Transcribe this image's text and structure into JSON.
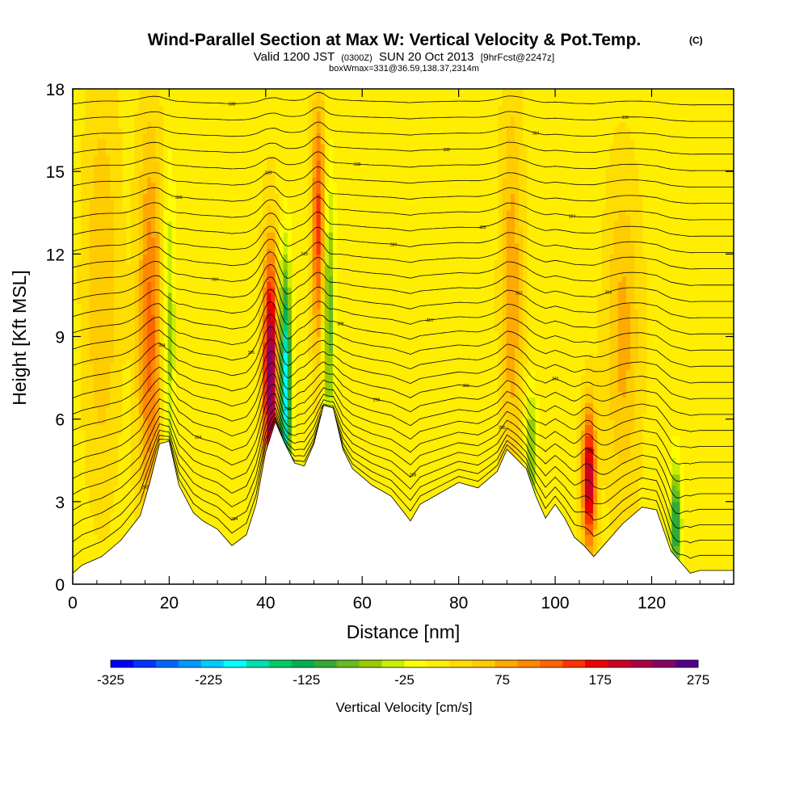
{
  "chart_data": {
    "type": "heatmap",
    "title": "Wind-Parallel Section at Max W: Vertical Velocity & Pot.Temp.",
    "title_mark": "(C)",
    "subtitle_parts": [
      "Valid 1200 JST",
      "(0300Z)",
      "SUN 20 Oct 2013",
      "[9hrFcst@2247z]"
    ],
    "subtitle2": "boxWmax=331@36.59,138.37,2314m",
    "xlabel": "Distance [nm]",
    "ylabel": "Height [Kft MSL]",
    "xlim": [
      0,
      137
    ],
    "ylim": [
      0,
      18
    ],
    "x_ticks": [
      0,
      20,
      40,
      60,
      80,
      100,
      120
    ],
    "x_tick_labels": [
      "0",
      "20",
      "40",
      "60",
      "80",
      "100",
      "120"
    ],
    "y_ticks": [
      0,
      3,
      6,
      9,
      12,
      15,
      18
    ],
    "y_tick_labels": [
      "0",
      "3",
      "6",
      "9",
      "12",
      "15",
      "18"
    ],
    "colorbar": {
      "title": "Vertical Velocity [cm/s]",
      "min": -325,
      "max": 275,
      "step": 25,
      "tick_values": [
        -325,
        -225,
        -125,
        -25,
        75,
        175,
        275
      ],
      "tick_labels": [
        "-325",
        "-225",
        "-125",
        "-25",
        "75",
        "175",
        "275"
      ],
      "colors": [
        "#0000ff",
        "#0033ff",
        "#0066ff",
        "#0099ff",
        "#00ccff",
        "#00ffff",
        "#00e0b0",
        "#00cc66",
        "#00b050",
        "#33aa33",
        "#66bb22",
        "#99cc00",
        "#ccee00",
        "#ffff00",
        "#ffee00",
        "#ffdd00",
        "#ffcc00",
        "#ffaa00",
        "#ff8800",
        "#ff6600",
        "#ff3300",
        "#ee0000",
        "#cc0022",
        "#aa0044",
        "#880066",
        "#550088"
      ]
    },
    "background_w": 40,
    "terrain_top": [
      [
        0,
        0.4
      ],
      [
        2,
        0.7
      ],
      [
        6,
        1.0
      ],
      [
        10,
        1.6
      ],
      [
        14,
        2.5
      ],
      [
        16,
        3.7
      ],
      [
        18,
        5.1
      ],
      [
        20,
        5.2
      ],
      [
        22,
        3.6
      ],
      [
        25,
        2.6
      ],
      [
        27,
        2.3
      ],
      [
        30,
        2.0
      ],
      [
        33,
        1.4
      ],
      [
        36,
        1.8
      ],
      [
        38,
        2.9
      ],
      [
        40,
        4.8
      ],
      [
        42,
        5.9
      ],
      [
        44,
        5.1
      ],
      [
        46,
        4.4
      ],
      [
        48,
        4.3
      ],
      [
        50,
        5.1
      ],
      [
        52,
        6.5
      ],
      [
        54,
        6.4
      ],
      [
        56,
        4.9
      ],
      [
        58,
        4.2
      ],
      [
        62,
        3.6
      ],
      [
        66,
        3.2
      ],
      [
        70,
        2.3
      ],
      [
        72,
        2.9
      ],
      [
        76,
        3.3
      ],
      [
        80,
        3.7
      ],
      [
        84,
        3.5
      ],
      [
        88,
        4.1
      ],
      [
        90,
        4.9
      ],
      [
        94,
        4.2
      ],
      [
        96,
        3.2
      ],
      [
        98,
        2.4
      ],
      [
        100,
        2.9
      ],
      [
        102,
        2.4
      ],
      [
        104,
        1.7
      ],
      [
        106,
        1.4
      ],
      [
        108,
        1.0
      ],
      [
        110,
        1.4
      ],
      [
        114,
        2.2
      ],
      [
        118,
        2.8
      ],
      [
        121,
        2.7
      ],
      [
        124,
        1.2
      ],
      [
        126,
        0.8
      ],
      [
        128,
        0.4
      ],
      [
        130,
        0.5
      ],
      [
        137,
        0.5
      ]
    ],
    "w_features": [
      {
        "x": 41,
        "z": 7.5,
        "w": 260,
        "sx": 1.1,
        "sz": 3.2
      },
      {
        "x": 44,
        "z": 7.2,
        "w": -240,
        "sx": 0.9,
        "sz": 3.0
      },
      {
        "x": 16,
        "z": 9.0,
        "w": 120,
        "sx": 1.8,
        "sz": 5.0
      },
      {
        "x": 20,
        "z": 9.0,
        "w": -80,
        "sx": 0.9,
        "sz": 4.0
      },
      {
        "x": 51,
        "z": 13.0,
        "w": 150,
        "sx": 1.0,
        "sz": 3.2
      },
      {
        "x": 53,
        "z": 10.0,
        "w": -120,
        "sx": 0.9,
        "sz": 3.4
      },
      {
        "x": 107,
        "z": 3.8,
        "w": 220,
        "sx": 1.0,
        "sz": 1.8
      },
      {
        "x": 95,
        "z": 4.8,
        "w": -100,
        "sx": 0.9,
        "sz": 1.6
      },
      {
        "x": 125,
        "z": 2.2,
        "w": -150,
        "sx": 0.8,
        "sz": 1.5
      },
      {
        "x": 91,
        "z": 10.5,
        "w": 80,
        "sx": 1.6,
        "sz": 5.0
      },
      {
        "x": 114,
        "z": 9.0,
        "w": 70,
        "sx": 2.5,
        "sz": 4.0
      },
      {
        "x": 6,
        "z": 11.0,
        "w": 60,
        "sx": 2.5,
        "sz": 5.0
      }
    ],
    "theta_contours": {
      "values": [
        "282",
        "284",
        "286",
        "288",
        "290",
        "292",
        "294",
        "296",
        "298",
        "300",
        "302",
        "304",
        "306",
        "308",
        "310",
        "312",
        "314",
        "316",
        "318",
        "320",
        "322",
        "324",
        "326",
        "328",
        "330",
        "332",
        "334",
        "336",
        "338",
        "340",
        "342",
        "344"
      ],
      "base_heights_kft": [
        0.6,
        1.2,
        1.8,
        2.4,
        3.0,
        3.6,
        4.2,
        4.8,
        5.4,
        6.0,
        6.6,
        7.2,
        7.8,
        8.4,
        9.0,
        9.6,
        10.2,
        10.8,
        11.4,
        12.0,
        12.6,
        13.2,
        13.8,
        14.4,
        15.0,
        15.6,
        16.2,
        16.8,
        17.4,
        18.0,
        18.6,
        19.2
      ]
    }
  }
}
